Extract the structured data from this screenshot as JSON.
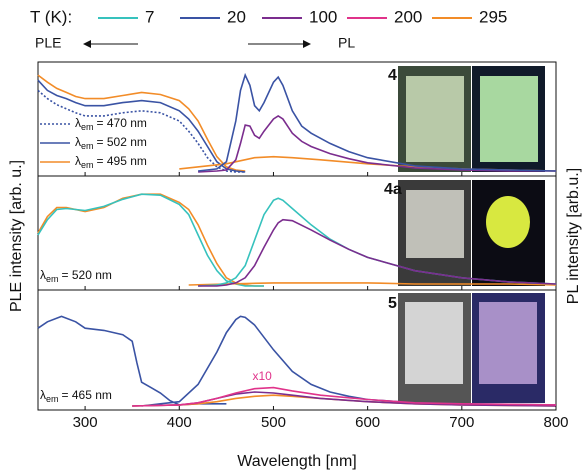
{
  "legend": {
    "title": "T (K):",
    "items": [
      {
        "name": "7",
        "color": "#36c2bd"
      },
      {
        "name": "20",
        "color": "#3a53a4"
      },
      {
        "name": "100",
        "color": "#7b2d8e"
      },
      {
        "name": "200",
        "color": "#e0338a"
      },
      {
        "name": "295",
        "color": "#f28c28"
      }
    ]
  },
  "arrows": {
    "ple": "PLE",
    "pl": "PL"
  },
  "ylabel_left": "PLE intensity [arb. u.]",
  "ylabel_right": "PL intensity [arb.u.]",
  "chart_data": [
    {
      "type": "line",
      "label": "4",
      "xlim": [
        250,
        800
      ],
      "ylim": [
        0,
        100
      ],
      "annotations": [
        {
          "symbol": "λ",
          "subscript": "em",
          "text": "= 470 nm",
          "color": "#3a53a4",
          "style": "dotted"
        },
        {
          "symbol": "λ",
          "subscript": "em",
          "text": "= 502 nm",
          "color": "#3a53a4",
          "style": "solid"
        },
        {
          "symbol": "λ",
          "subscript": "em",
          "text": "= 495 nm",
          "color": "#f28c28",
          "style": "solid"
        }
      ],
      "series": [
        {
          "name": "20",
          "color": "#3a53a4",
          "style": "dotted",
          "x": [
            250,
            260,
            270,
            280,
            290,
            300,
            320,
            340,
            360,
            380,
            400,
            410,
            420,
            430,
            440,
            450,
            460,
            470
          ],
          "values": [
            80,
            72,
            66,
            62,
            58,
            55,
            55,
            58,
            60,
            58,
            50,
            40,
            28,
            14,
            5,
            1,
            0,
            0
          ]
        },
        {
          "name": "295",
          "color": "#f28c28",
          "style": "solid",
          "x": [
            250,
            260,
            270,
            280,
            290,
            300,
            320,
            340,
            360,
            380,
            400,
            410,
            420,
            430,
            440,
            450,
            460,
            470
          ],
          "values": [
            95,
            88,
            82,
            78,
            74,
            72,
            72,
            75,
            78,
            76,
            70,
            62,
            50,
            32,
            15,
            5,
            2,
            1
          ]
        },
        {
          "name": "20",
          "color": "#3a53a4",
          "style": "solid",
          "x": [
            250,
            260,
            270,
            280,
            290,
            300,
            320,
            340,
            360,
            380,
            400,
            410,
            420,
            430,
            440,
            450,
            460,
            470
          ],
          "values": [
            90,
            80,
            75,
            72,
            68,
            65,
            65,
            68,
            70,
            68,
            60,
            52,
            40,
            25,
            10,
            3,
            1,
            0
          ]
        },
        {
          "name": "295",
          "color": "#f28c28",
          "style": "solid",
          "x": [
            400,
            450,
            480,
            500,
            520,
            550,
            600,
            650,
            700,
            750,
            800
          ],
          "values": [
            3,
            8,
            14,
            15,
            14,
            12,
            8,
            5,
            3,
            2,
            1
          ]
        },
        {
          "name": "100",
          "color": "#7b2d8e",
          "style": "solid",
          "x": [
            420,
            440,
            450,
            460,
            465,
            470,
            475,
            480,
            485,
            490,
            500,
            505,
            510,
            520,
            530,
            540,
            560,
            580,
            600,
            650,
            700,
            750,
            800
          ],
          "values": [
            0,
            1,
            2,
            12,
            28,
            46,
            45,
            36,
            33,
            40,
            52,
            55,
            52,
            38,
            30,
            25,
            18,
            13,
            9,
            4,
            2,
            1,
            1
          ]
        },
        {
          "name": "20",
          "color": "#3a53a4",
          "style": "solid",
          "x": [
            420,
            440,
            450,
            460,
            465,
            470,
            475,
            480,
            485,
            490,
            500,
            505,
            510,
            520,
            530,
            540,
            560,
            580,
            600,
            650,
            700,
            750,
            800
          ],
          "values": [
            1,
            3,
            10,
            50,
            80,
            95,
            85,
            65,
            60,
            68,
            88,
            93,
            85,
            60,
            45,
            38,
            28,
            20,
            14,
            6,
            3,
            2,
            1
          ]
        }
      ]
    },
    {
      "type": "line",
      "label": "4a",
      "xlim": [
        250,
        800
      ],
      "ylim": [
        0,
        100
      ],
      "annotations": [
        {
          "symbol": "λ",
          "subscript": "em",
          "text": "= 520 nm"
        }
      ],
      "series": [
        {
          "name": "295",
          "color": "#f28c28",
          "style": "solid",
          "x": [
            250,
            260,
            270,
            280,
            300,
            320,
            340,
            360,
            380,
            400,
            410,
            420,
            430,
            440,
            450,
            460,
            470,
            480,
            490
          ],
          "values": [
            52,
            68,
            77,
            77,
            73,
            77,
            86,
            90,
            90,
            82,
            75,
            60,
            40,
            22,
            8,
            3,
            1,
            0,
            0
          ]
        },
        {
          "name": "7",
          "color": "#36c2bd",
          "style": "solid",
          "x": [
            250,
            260,
            270,
            280,
            300,
            320,
            340,
            360,
            380,
            400,
            410,
            420,
            430,
            440,
            450,
            460,
            470,
            480,
            490
          ],
          "values": [
            50,
            65,
            75,
            76,
            74,
            78,
            85,
            90,
            89,
            80,
            70,
            50,
            30,
            15,
            5,
            2,
            0,
            0,
            0
          ]
        },
        {
          "name": "295",
          "color": "#f28c28",
          "style": "solid",
          "x": [
            410,
            450,
            500,
            550,
            600,
            650,
            700,
            750,
            800
          ],
          "values": [
            1,
            2,
            3,
            3,
            3,
            2,
            2,
            2,
            1
          ]
        },
        {
          "name": "7",
          "color": "#36c2bd",
          "style": "solid",
          "x": [
            420,
            440,
            450,
            460,
            470,
            480,
            490,
            500,
            505,
            510,
            520,
            540,
            560,
            580,
            600,
            650,
            700,
            750,
            800
          ],
          "values": [
            0,
            1,
            3,
            8,
            20,
            45,
            70,
            84,
            86,
            84,
            76,
            60,
            46,
            36,
            28,
            15,
            8,
            4,
            2
          ]
        },
        {
          "name": "100",
          "color": "#7b2d8e",
          "style": "solid",
          "x": [
            420,
            440,
            450,
            460,
            470,
            480,
            490,
            500,
            505,
            510,
            520,
            540,
            560,
            580,
            600,
            650,
            700,
            750,
            800
          ],
          "values": [
            0,
            0,
            1,
            3,
            8,
            20,
            38,
            55,
            62,
            65,
            64,
            55,
            45,
            36,
            28,
            15,
            8,
            4,
            2
          ]
        }
      ]
    },
    {
      "type": "line",
      "label": "5",
      "xlim": [
        250,
        800
      ],
      "ylim": [
        0,
        100
      ],
      "xticks": [
        300,
        400,
        500,
        600,
        700,
        800
      ],
      "xlabel": "Wavelength [nm]",
      "annotations": [
        {
          "symbol": "λ",
          "subscript": "em",
          "text": "= 465 nm"
        }
      ],
      "notes": [
        {
          "text": "x10",
          "x": 488,
          "y": 27,
          "color": "#e0338a"
        }
      ],
      "series": [
        {
          "name": "20",
          "color": "#3a53a4",
          "style": "solid",
          "x": [
            250,
            260,
            275,
            290,
            300,
            320,
            340,
            350,
            355,
            360,
            370,
            380,
            390,
            400,
            420,
            440,
            450
          ],
          "values": [
            72,
            78,
            83,
            78,
            72,
            70,
            66,
            60,
            40,
            22,
            17,
            12,
            5,
            1,
            2,
            2,
            2
          ]
        },
        {
          "name": "20",
          "color": "#3a53a4",
          "style": "solid",
          "x": [
            360,
            380,
            400,
            420,
            440,
            450,
            460,
            465,
            470,
            480,
            500,
            520,
            540,
            560,
            580,
            600,
            650,
            700,
            800
          ],
          "values": [
            0,
            2,
            4,
            20,
            50,
            68,
            80,
            83,
            82,
            75,
            52,
            32,
            20,
            13,
            9,
            6,
            3,
            2,
            1
          ]
        },
        {
          "name": "295",
          "color": "#f28c28",
          "style": "solid",
          "x": [
            350,
            400,
            420,
            440,
            460,
            480,
            500,
            520,
            550,
            600,
            650,
            700,
            800
          ],
          "values": [
            0,
            1,
            2,
            4,
            7,
            9,
            10,
            9,
            7,
            4,
            2,
            1,
            0
          ]
        },
        {
          "name": "100",
          "color": "#7b2d8e",
          "style": "solid",
          "x": [
            350,
            400,
            420,
            440,
            460,
            480,
            500,
            520,
            550,
            600,
            650,
            700,
            800
          ],
          "values": [
            0,
            1,
            3,
            7,
            11,
            13,
            12,
            10,
            7,
            4,
            2,
            1,
            0
          ]
        },
        {
          "name": "200",
          "color": "#e0338a",
          "style": "solid",
          "x": [
            350,
            400,
            420,
            440,
            460,
            480,
            500,
            520,
            550,
            600,
            650,
            700,
            800
          ],
          "values": [
            0,
            1,
            3,
            7,
            12,
            16,
            17,
            14,
            10,
            6,
            3,
            2,
            1
          ]
        }
      ]
    }
  ]
}
